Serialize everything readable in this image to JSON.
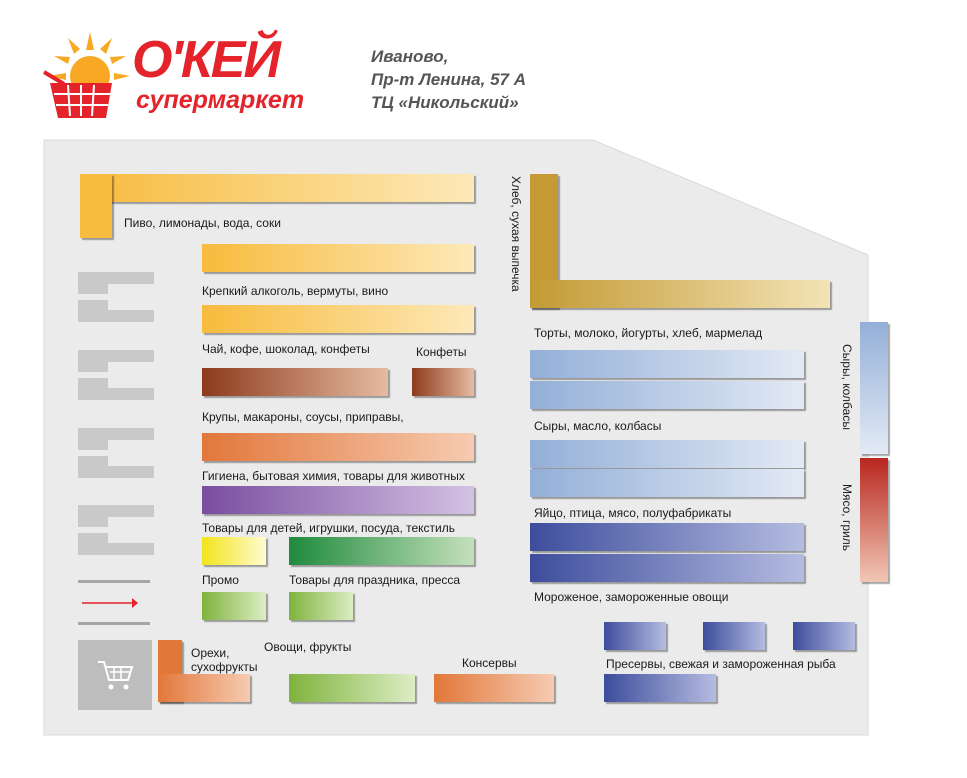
{
  "logo": {
    "brand": "О'КЕЙ",
    "subtitle": "супермаркет",
    "brand_color": "#e4232a",
    "sun_color": "#f9a826"
  },
  "address": {
    "line1": "Иваново,",
    "line2": "Пр-т Ленина, 57 А",
    "line3": "ТЦ «Никольский»"
  },
  "sections": {
    "beer": "Пиво, лимонады, вода, соки",
    "strong_alcohol": "Крепкий алкоголь, вермуты, вино",
    "tea_coffee": "Чай, кофе, шоколад, конфеты",
    "candies": "Конфеты",
    "groceries": "Крупы, макароны, соусы, приправы,",
    "hygiene": "Гигиена, бытовая химия, товары для животных",
    "kids": "Товары для детей, игрушки, посуда, текстиль",
    "promo": "Промо",
    "holiday": "Товары для праздника, пресса",
    "nuts": "Орехи,",
    "nuts2": "сухофрукты",
    "vegetables": "Овощи, фрукты",
    "canned": "Консервы",
    "bread": "Хлеб, сухая выпечка",
    "cakes": "Торты, молоко, йогурты, хлеб, мармелад",
    "cheese_butter": "Сыры, масло, колбасы",
    "eggs": "Яйцо, птица, мясо, полуфабрикаты",
    "frozen": "Мороженое, замороженные овощи",
    "fish": "Пресервы, свежая и замороженная рыба",
    "cheese_sausage": "Сыры, колбасы",
    "meat_grill": "Мясо, гриль"
  },
  "icons": {
    "cart": "shopping-cart-icon",
    "arrow": "entrance-arrow-icon"
  }
}
